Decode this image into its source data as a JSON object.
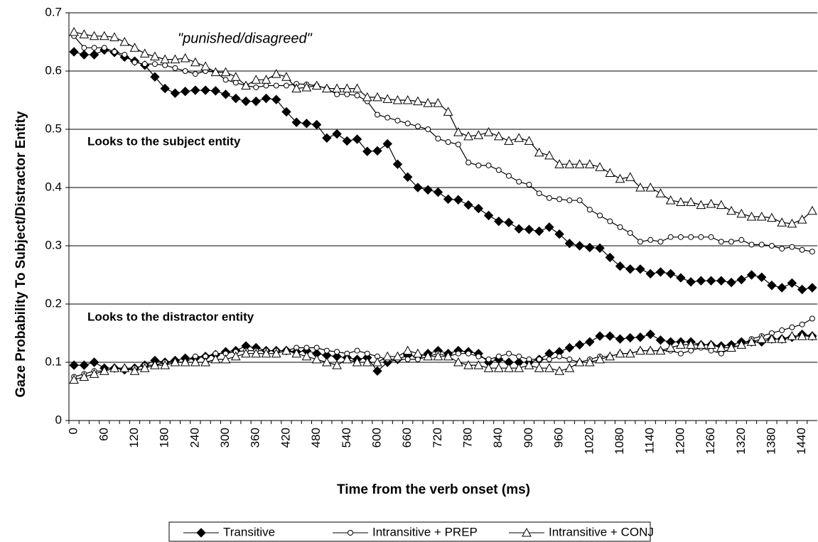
{
  "chart_data": {
    "type": "line",
    "xlabel": "Time from the verb onset (ms)",
    "ylabel": "Gaze Probability To Subject/Distractor Entity",
    "annotations": [
      "\"punished/disagreed\"",
      "Looks to the subject entity",
      "Looks to the distractor entity"
    ],
    "categories": [
      "0",
      null,
      null,
      "60",
      null,
      null,
      "120",
      null,
      null,
      "180",
      null,
      null,
      "240",
      null,
      null,
      "300",
      null,
      null,
      "360",
      null,
      null,
      "420",
      null,
      null,
      "480",
      null,
      null,
      "540",
      null,
      null,
      "600",
      null,
      null,
      "660",
      null,
      null,
      "720",
      null,
      null,
      "780",
      null,
      null,
      "840",
      null,
      null,
      "900",
      null,
      null,
      "960",
      null,
      null,
      "1020",
      null,
      null,
      "1080",
      null,
      null,
      "1140",
      null,
      null,
      "1200",
      null,
      null,
      "1260",
      null,
      null,
      "1320",
      null,
      null,
      "1380",
      null,
      null,
      "1440",
      null
    ],
    "ylim": [
      0,
      0.7
    ],
    "yticks": [
      0,
      0.1,
      0.2,
      0.3,
      0.4,
      0.5,
      0.6,
      0.7
    ],
    "grid": true,
    "series": [
      {
        "name": "Transitive",
        "color": "#000000",
        "marker": "diamond",
        "values": [
          0.633,
          0.628,
          0.628,
          0.636,
          0.632,
          0.624,
          0.617,
          0.61,
          0.59,
          0.57,
          0.562,
          0.565,
          0.567,
          0.567,
          0.566,
          0.56,
          0.553,
          0.548,
          0.548,
          0.553,
          0.551,
          0.53,
          0.512,
          0.51,
          0.508,
          0.485,
          0.492,
          0.48,
          0.483,
          0.462,
          0.463,
          0.475,
          0.44,
          0.418,
          0.4,
          0.396,
          0.392,
          0.38,
          0.379,
          0.37,
          0.364,
          0.352,
          0.342,
          0.34,
          0.329,
          0.328,
          0.325,
          0.332,
          0.32,
          0.304,
          0.3,
          0.297,
          0.296,
          0.28,
          0.265,
          0.26,
          0.26,
          0.252,
          0.255,
          0.252,
          0.245,
          0.238,
          0.24,
          0.24,
          0.24,
          0.237,
          0.242,
          0.25,
          0.246,
          0.232,
          0.228,
          0.236,
          0.225,
          0.228
        ],
        "distractor_values": [
          0.095,
          0.095,
          0.1,
          0.09,
          0.09,
          0.087,
          0.09,
          0.095,
          0.103,
          0.1,
          0.103,
          0.107,
          0.107,
          0.11,
          0.113,
          0.118,
          0.12,
          0.128,
          0.125,
          0.12,
          0.12,
          0.12,
          0.118,
          0.12,
          0.115,
          0.112,
          0.11,
          0.108,
          0.105,
          0.108,
          0.085,
          0.1,
          0.105,
          0.112,
          0.11,
          0.115,
          0.12,
          0.115,
          0.12,
          0.118,
          0.115,
          0.1,
          0.105,
          0.1,
          0.1,
          0.1,
          0.105,
          0.115,
          0.118,
          0.125,
          0.13,
          0.135,
          0.145,
          0.145,
          0.14,
          0.142,
          0.143,
          0.148,
          0.138,
          0.135,
          0.135,
          0.135,
          0.13,
          0.13,
          0.128,
          0.13,
          0.135,
          0.135,
          0.135,
          0.14,
          0.14,
          0.143,
          0.148,
          0.145
        ]
      },
      {
        "name": "Intransitive + PREP",
        "color": "#000000",
        "marker": "circle",
        "values": [
          0.66,
          0.64,
          0.64,
          0.64,
          0.633,
          0.628,
          0.615,
          0.612,
          0.612,
          0.61,
          0.605,
          0.6,
          0.595,
          0.6,
          0.598,
          0.585,
          0.58,
          0.575,
          0.572,
          0.575,
          0.575,
          0.575,
          0.578,
          0.577,
          0.575,
          0.57,
          0.56,
          0.56,
          0.558,
          0.548,
          0.525,
          0.52,
          0.515,
          0.51,
          0.505,
          0.5,
          0.484,
          0.478,
          0.474,
          0.443,
          0.438,
          0.438,
          0.43,
          0.42,
          0.41,
          0.405,
          0.39,
          0.382,
          0.38,
          0.378,
          0.378,
          0.362,
          0.352,
          0.342,
          0.332,
          0.322,
          0.307,
          0.31,
          0.307,
          0.315,
          0.315,
          0.315,
          0.315,
          0.315,
          0.307,
          0.307,
          0.31,
          0.302,
          0.302,
          0.3,
          0.295,
          0.298,
          0.293,
          0.29
        ],
        "distractor_values": [
          0.075,
          0.08,
          0.085,
          0.085,
          0.09,
          0.09,
          0.09,
          0.095,
          0.095,
          0.1,
          0.1,
          0.1,
          0.11,
          0.11,
          0.115,
          0.115,
          0.118,
          0.12,
          0.12,
          0.12,
          0.12,
          0.12,
          0.125,
          0.125,
          0.125,
          0.12,
          0.118,
          0.115,
          0.12,
          0.115,
          0.11,
          0.105,
          0.105,
          0.105,
          0.105,
          0.11,
          0.115,
          0.11,
          0.115,
          0.115,
          0.11,
          0.105,
          0.11,
          0.115,
          0.11,
          0.105,
          0.105,
          0.105,
          0.11,
          0.105,
          0.1,
          0.105,
          0.11,
          0.11,
          0.115,
          0.115,
          0.12,
          0.12,
          0.12,
          0.12,
          0.115,
          0.12,
          0.125,
          0.12,
          0.115,
          0.125,
          0.13,
          0.14,
          0.145,
          0.15,
          0.155,
          0.16,
          0.165,
          0.175
        ]
      },
      {
        "name": "Intransitive + CONJ",
        "color": "#000000",
        "marker": "triangle",
        "values": [
          0.667,
          0.663,
          0.66,
          0.66,
          0.658,
          0.65,
          0.64,
          0.63,
          0.625,
          0.62,
          0.62,
          0.622,
          0.615,
          0.608,
          0.598,
          0.598,
          0.59,
          0.575,
          0.585,
          0.585,
          0.595,
          0.59,
          0.57,
          0.572,
          0.575,
          0.57,
          0.57,
          0.57,
          0.57,
          0.555,
          0.555,
          0.552,
          0.55,
          0.55,
          0.548,
          0.545,
          0.545,
          0.53,
          0.495,
          0.488,
          0.49,
          0.495,
          0.488,
          0.48,
          0.485,
          0.48,
          0.46,
          0.455,
          0.44,
          0.44,
          0.44,
          0.44,
          0.435,
          0.425,
          0.415,
          0.418,
          0.4,
          0.4,
          0.39,
          0.378,
          0.375,
          0.375,
          0.37,
          0.372,
          0.37,
          0.36,
          0.355,
          0.35,
          0.35,
          0.348,
          0.34,
          0.338,
          0.345,
          0.36
        ],
        "distractor_values": [
          0.07,
          0.075,
          0.08,
          0.085,
          0.09,
          0.09,
          0.085,
          0.09,
          0.095,
          0.095,
          0.1,
          0.1,
          0.1,
          0.1,
          0.105,
          0.105,
          0.11,
          0.115,
          0.115,
          0.115,
          0.115,
          0.12,
          0.115,
          0.11,
          0.105,
          0.1,
          0.095,
          0.105,
          0.1,
          0.1,
          0.1,
          0.11,
          0.11,
          0.12,
          0.115,
          0.11,
          0.11,
          0.11,
          0.1,
          0.095,
          0.095,
          0.09,
          0.09,
          0.09,
          0.09,
          0.095,
          0.09,
          0.09,
          0.085,
          0.09,
          0.1,
          0.1,
          0.105,
          0.11,
          0.115,
          0.115,
          0.12,
          0.12,
          0.12,
          0.125,
          0.13,
          0.13,
          0.13,
          0.13,
          0.125,
          0.125,
          0.13,
          0.135,
          0.14,
          0.14,
          0.14,
          0.145,
          0.145,
          0.145
        ]
      }
    ]
  }
}
